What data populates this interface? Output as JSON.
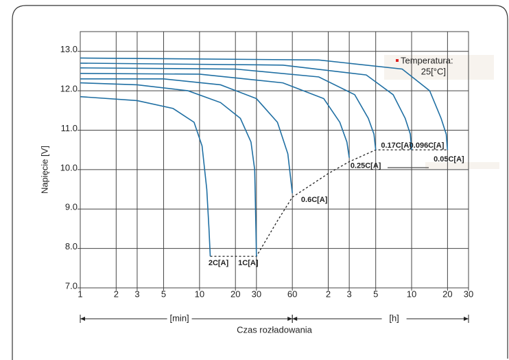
{
  "chart_data": {
    "type": "line",
    "x_label": "Czas rozładowania",
    "y_label": "Napięcie [V]",
    "x_span_labels": [
      "[min]",
      "[h]"
    ],
    "annotation": [
      "Temperatura:",
      "25[°C]"
    ],
    "log_x": true,
    "grid": true,
    "color": "#1f6fa3",
    "xlim": [
      1,
      1800
    ],
    "xticks": [
      1,
      2,
      3,
      5,
      10,
      20,
      30,
      60,
      {
        "value": 120,
        "label": "2"
      },
      {
        "value": 180,
        "label": "3"
      },
      {
        "value": 300,
        "label": "5"
      },
      {
        "value": 600,
        "label": "10"
      },
      {
        "value": 1200,
        "label": "20"
      },
      {
        "value": 1800,
        "label": "30"
      }
    ],
    "ylim": [
      7,
      13.5
    ],
    "yticks": [
      {
        "value": 7,
        "label": "7.0"
      },
      {
        "value": 8,
        "label": "8.0"
      },
      {
        "value": 9,
        "label": "9.0"
      },
      {
        "value": 10,
        "label": "10.0"
      },
      {
        "value": 11,
        "label": "11.0"
      },
      {
        "value": 12,
        "label": "12.0"
      },
      {
        "value": 13,
        "label": "13.0"
      }
    ],
    "series": [
      {
        "name": "2C[A]",
        "x": [
          1,
          3,
          6,
          9,
          10.5,
          11.5,
          12,
          12.3
        ],
        "values": [
          11.85,
          11.75,
          11.55,
          11.2,
          10.6,
          9.5,
          8.5,
          7.8
        ]
      },
      {
        "name": "1C[A]",
        "x": [
          1,
          3,
          8,
          15,
          22,
          27,
          29,
          29.7,
          30
        ],
        "values": [
          12.2,
          12.15,
          12.0,
          11.7,
          11.3,
          10.7,
          10.0,
          8.5,
          7.8
        ]
      },
      {
        "name": "0.6C[A]",
        "x": [
          1,
          5,
          15,
          30,
          45,
          55,
          60
        ],
        "values": [
          12.3,
          12.3,
          12.15,
          11.8,
          11.2,
          10.4,
          9.4
        ]
      },
      {
        "name": "0.25C[A]",
        "x": [
          1,
          10,
          50,
          110,
          150,
          172,
          180
        ],
        "values": [
          12.44,
          12.42,
          12.2,
          11.8,
          11.2,
          10.7,
          10.3
        ]
      },
      {
        "name": "0.17C[A]",
        "x": [
          1,
          20,
          100,
          200,
          260,
          290,
          300
        ],
        "values": [
          12.58,
          12.55,
          12.35,
          11.9,
          11.3,
          10.9,
          10.5
        ]
      },
      {
        "name": "0.096C[A]",
        "x": [
          1,
          50,
          250,
          420,
          530,
          585,
          600
        ],
        "values": [
          12.7,
          12.65,
          12.4,
          11.9,
          11.3,
          10.9,
          10.5
        ]
      },
      {
        "name": "0.05C[A]",
        "x": [
          1,
          100,
          500,
          850,
          1060,
          1170,
          1200
        ],
        "values": [
          12.83,
          12.78,
          12.55,
          12.0,
          11.3,
          10.9,
          10.5
        ]
      }
    ],
    "end_voltage": {
      "x": [
        12.3,
        30,
        45,
        60,
        120,
        180,
        300,
        600,
        1200
      ],
      "values": [
        7.8,
        7.8,
        8.7,
        9.3,
        9.9,
        10.2,
        10.5,
        10.5,
        10.5
      ]
    }
  }
}
